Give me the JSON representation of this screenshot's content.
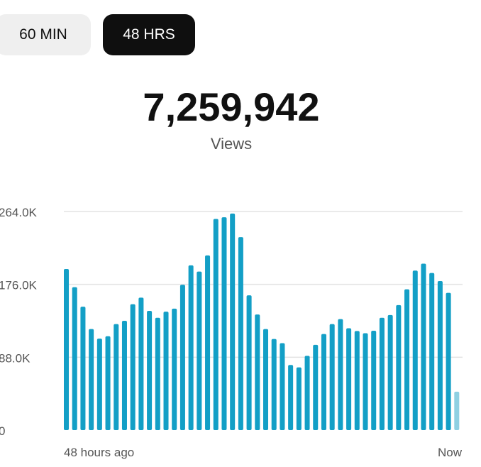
{
  "tabs": [
    {
      "label": "60 MIN",
      "selected": false
    },
    {
      "label": "48 HRS",
      "selected": true
    }
  ],
  "summary": {
    "total": "7,259,942",
    "metric": "Views"
  },
  "chart_data": {
    "type": "bar",
    "xlabel_start": "48 hours ago",
    "xlabel_end": "Now",
    "y_ticks": [
      "0",
      "88.0K",
      "176.0K",
      "264.0K"
    ],
    "ylim": [
      0,
      264000
    ],
    "grid": true,
    "colors": {
      "bar": "#139fc6",
      "current_bar": "#8fd0e2"
    },
    "values": [
      194600,
      172600,
      149000,
      122000,
      110500,
      113400,
      128000,
      132000,
      152000,
      160000,
      144000,
      135600,
      143000,
      146700,
      175500,
      199000,
      191500,
      211000,
      255000,
      257000,
      261500,
      233000,
      162700,
      139600,
      122000,
      110000,
      105000,
      78600,
      75800,
      89700,
      103000,
      116000,
      128000,
      134000,
      123000,
      119700,
      117000,
      120000,
      135600,
      139000,
      151000,
      170000,
      192600,
      201000,
      189700,
      180000,
      165800,
      46400
    ]
  }
}
